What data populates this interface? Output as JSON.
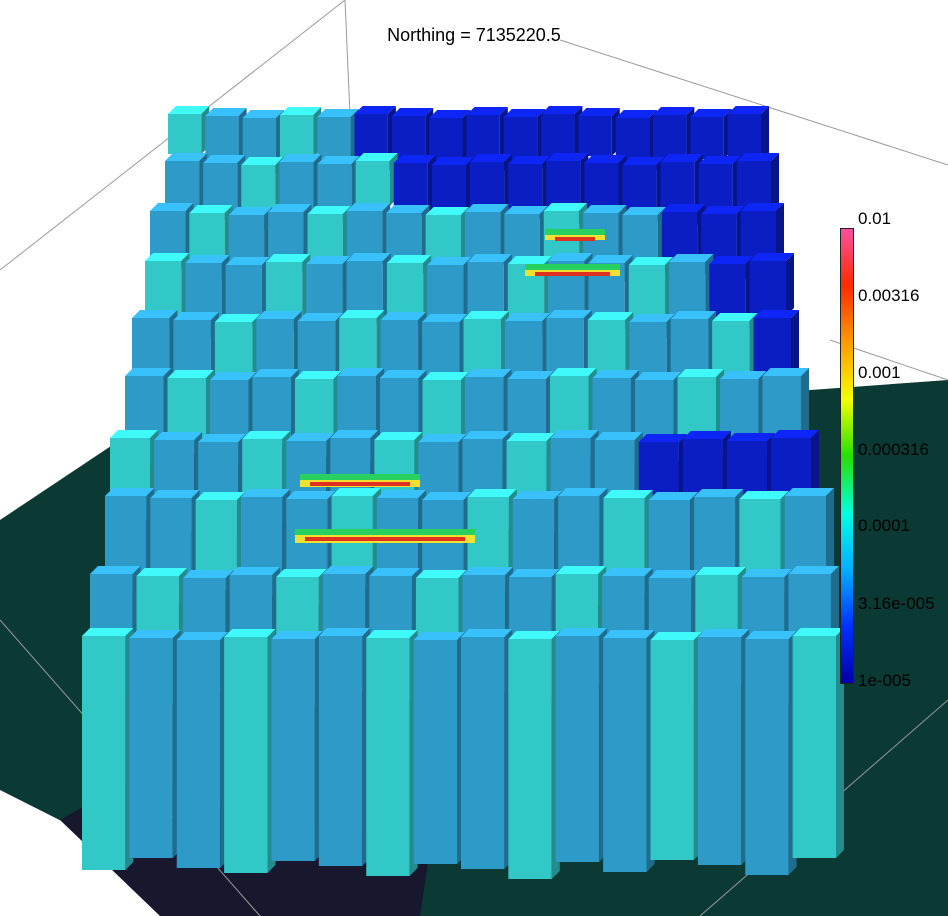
{
  "title": {
    "label": "Northing =",
    "value": "7135220.5"
  },
  "colorbar": {
    "scale": "log",
    "range": [
      "1e-005",
      "0.01"
    ],
    "ticks": [
      "0.01",
      "0.00316",
      "0.001",
      "0.000316",
      "0.0001",
      "3.16e-005",
      "1e-005"
    ],
    "colors": [
      "#ff4f9e",
      "#ff2a00",
      "#ff9b00",
      "#f2ff00",
      "#26e000",
      "#00ffe0",
      "#00b0ff",
      "#0030ff",
      "#0000a8"
    ]
  },
  "scene": {
    "ground_color": "#0b3a34",
    "background_color": "#ffffff",
    "axis_line_color": "#9a9a9a",
    "block_colors": {
      "low": "#0a1ec4",
      "medium": "#2d9ac8",
      "cyan": "#33c8c8",
      "high_green": "#28d060",
      "high_yellow": "#f0e030",
      "peak_red": "#e03020"
    }
  }
}
